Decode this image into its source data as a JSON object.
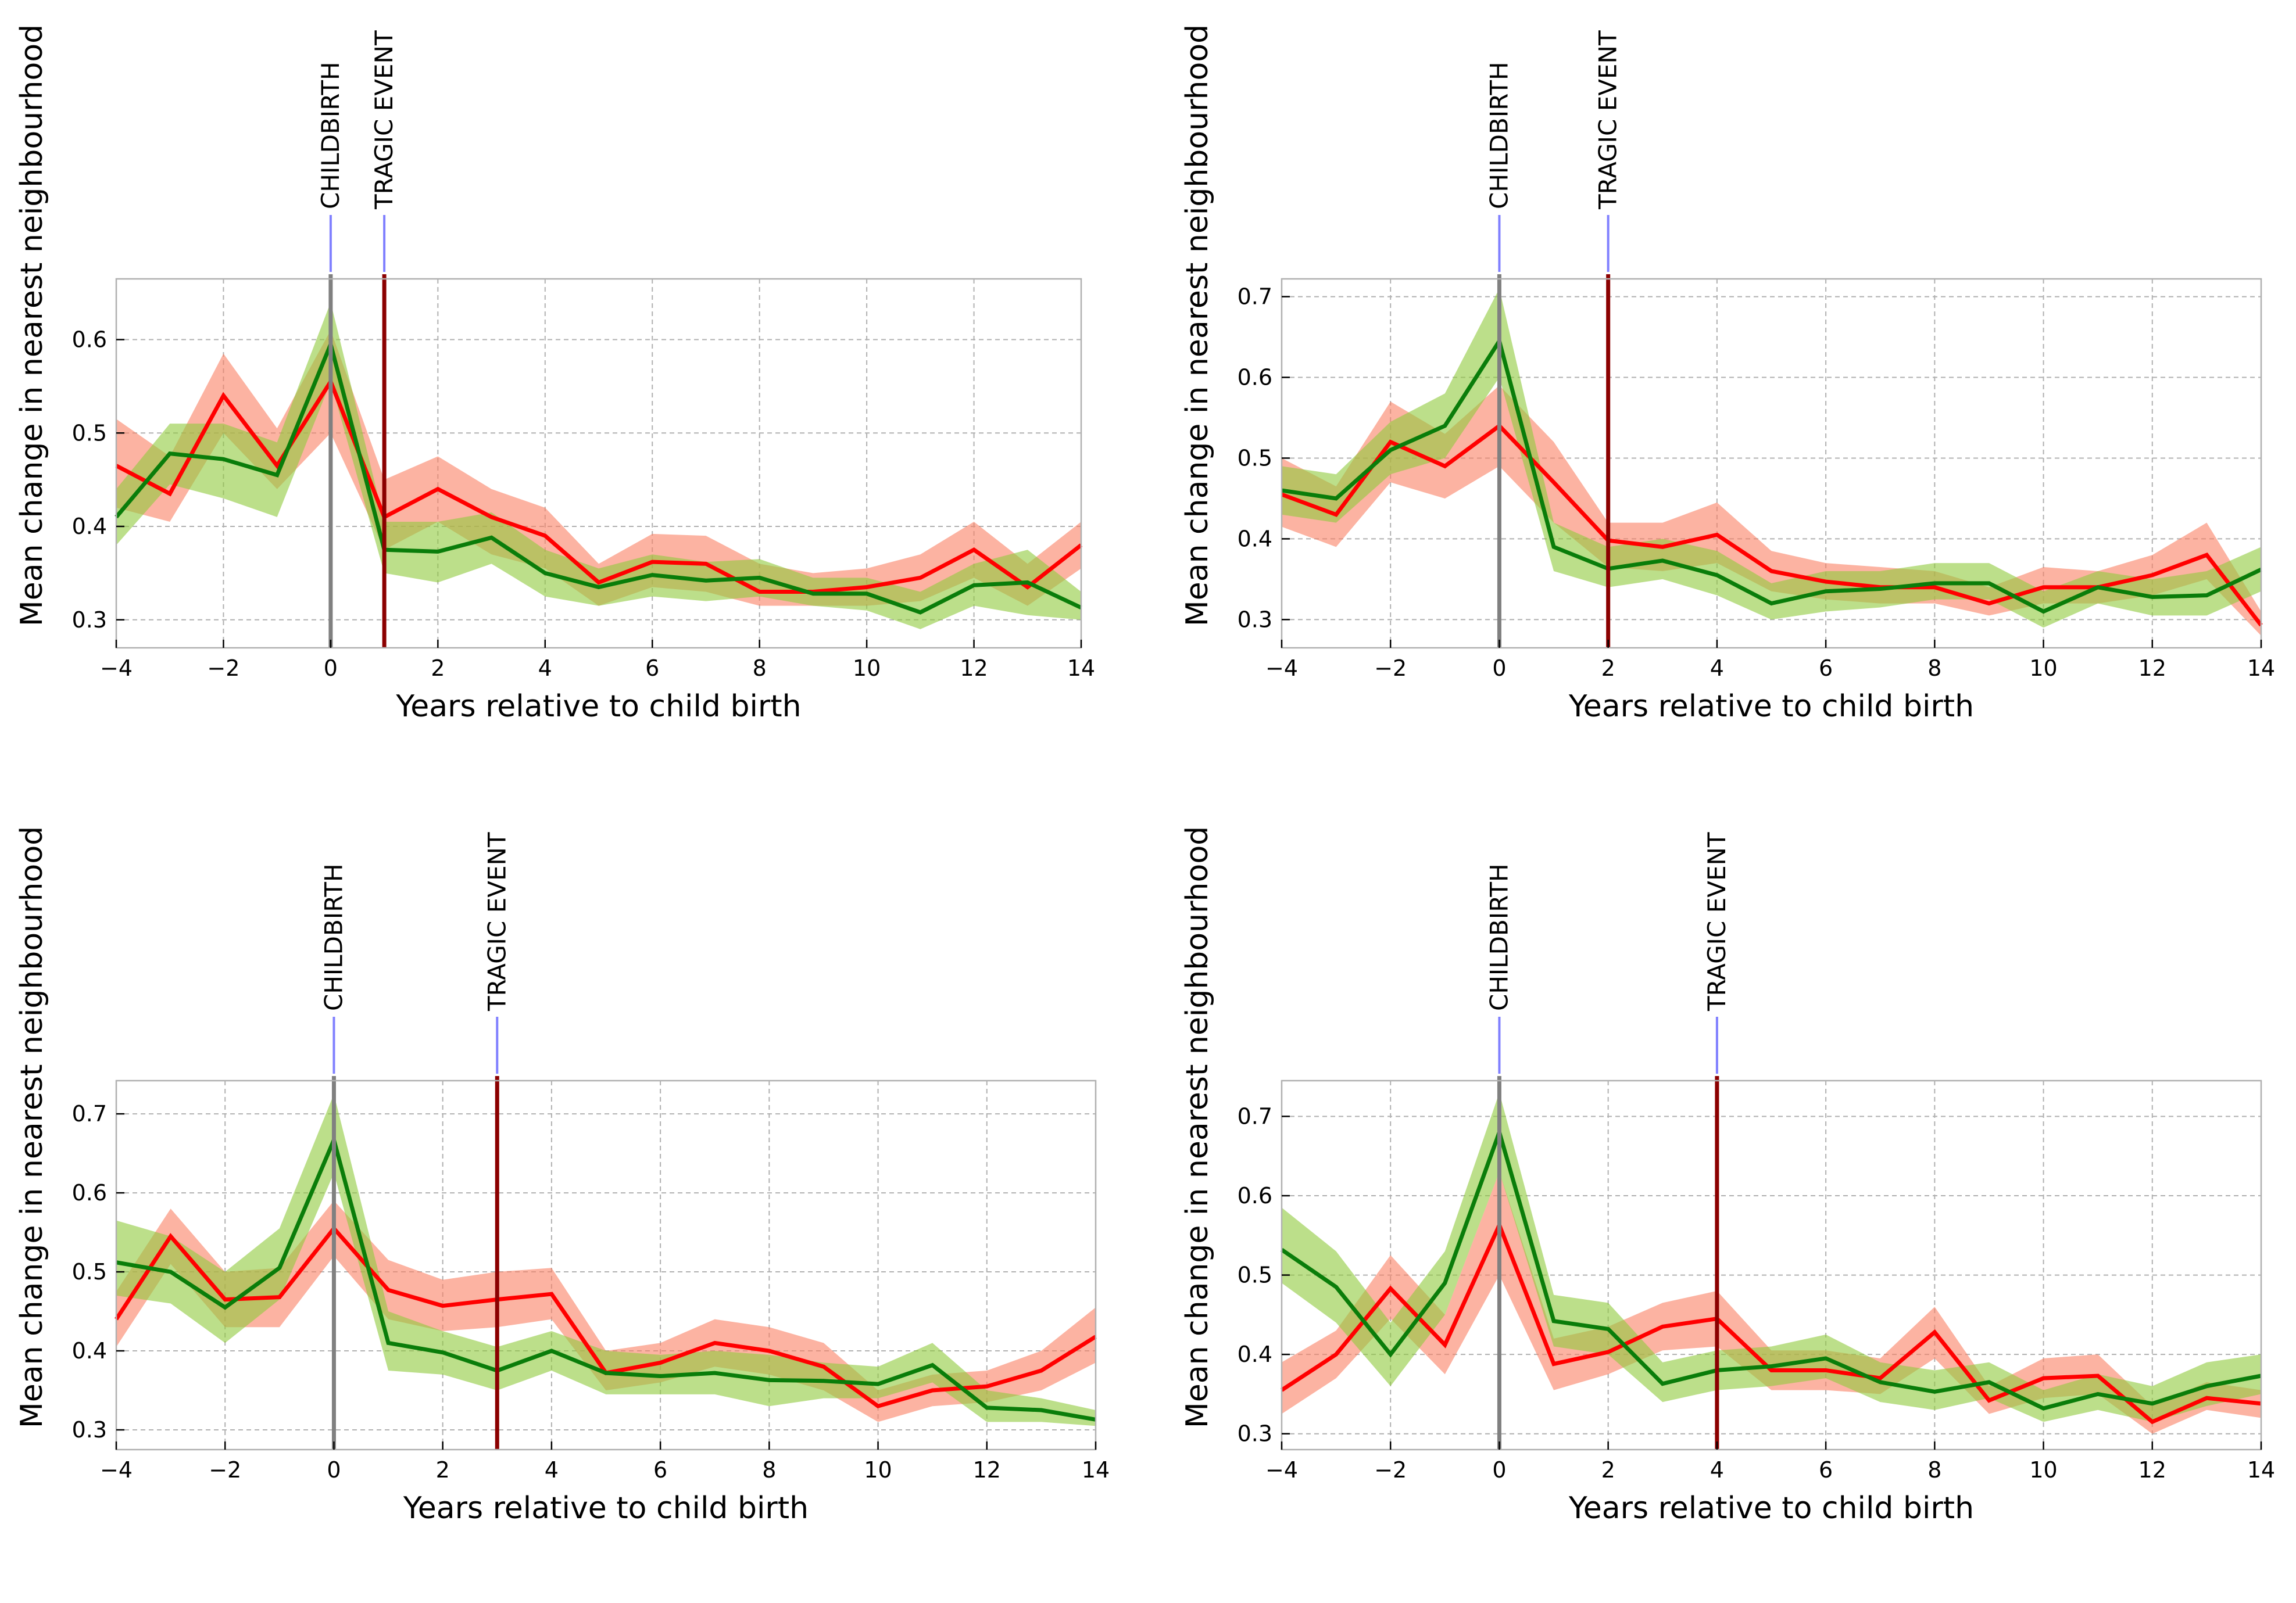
{
  "colors": {
    "series_red": "#ff0000",
    "band_red": "#fa8064",
    "series_green": "#0a7d0a",
    "band_green": "#8fca3c",
    "childbirth_line": "#808080",
    "tragic_line": "#8b0000",
    "marker": "#8080ff"
  },
  "chart_data": [
    {
      "type": "line",
      "xlabel": "Years relative to child birth",
      "ylabel": "Mean change in nearest neighbourhood",
      "xlim": [
        -4,
        14
      ],
      "ylim": [
        0.27,
        0.665
      ],
      "xticks": [
        -4,
        -2,
        0,
        2,
        4,
        6,
        8,
        10,
        12,
        14
      ],
      "xtick_labels": [
        "−4",
        "−2",
        "0",
        "2",
        "4",
        "6",
        "8",
        "10",
        "12",
        "14"
      ],
      "yticks": [
        0.3,
        0.4,
        0.5,
        0.6
      ],
      "ytick_labels": [
        "0.3",
        "0.4",
        "0.5",
        "0.6"
      ],
      "grid": true,
      "events": [
        {
          "label": "CHILDBIRTH",
          "x": 0,
          "color_key": "childbirth_line"
        },
        {
          "label": "TRAGIC EVENT",
          "x": 1,
          "color_key": "tragic_line"
        }
      ],
      "x": [
        -4,
        -3,
        -2,
        -1,
        0,
        1,
        2,
        3,
        4,
        5,
        6,
        7,
        8,
        9,
        10,
        11,
        12,
        13,
        14
      ],
      "series": [
        {
          "color_key": "series_red",
          "band_key": "band_red",
          "values": [
            0.465,
            0.435,
            0.54,
            0.465,
            0.555,
            0.41,
            0.44,
            0.41,
            0.39,
            0.34,
            0.362,
            0.36,
            0.33,
            0.33,
            0.335,
            0.345,
            0.375,
            0.335,
            0.38
          ],
          "lower": [
            0.42,
            0.405,
            0.5,
            0.44,
            0.5,
            0.375,
            0.405,
            0.37,
            0.355,
            0.315,
            0.335,
            0.33,
            0.315,
            0.315,
            0.315,
            0.32,
            0.345,
            0.315,
            0.355
          ],
          "upper": [
            0.515,
            0.475,
            0.585,
            0.505,
            0.61,
            0.45,
            0.475,
            0.44,
            0.42,
            0.36,
            0.392,
            0.39,
            0.36,
            0.35,
            0.355,
            0.37,
            0.405,
            0.36,
            0.405
          ]
        },
        {
          "color_key": "series_green",
          "band_key": "band_green",
          "values": [
            0.41,
            0.478,
            0.472,
            0.455,
            0.595,
            0.375,
            0.373,
            0.388,
            0.35,
            0.335,
            0.348,
            0.342,
            0.345,
            0.328,
            0.328,
            0.308,
            0.337,
            0.34,
            0.313
          ],
          "lower": [
            0.38,
            0.445,
            0.43,
            0.41,
            0.555,
            0.35,
            0.34,
            0.36,
            0.325,
            0.315,
            0.325,
            0.32,
            0.325,
            0.315,
            0.31,
            0.29,
            0.315,
            0.305,
            0.3
          ],
          "upper": [
            0.44,
            0.51,
            0.51,
            0.49,
            0.64,
            0.405,
            0.405,
            0.415,
            0.375,
            0.355,
            0.37,
            0.362,
            0.365,
            0.345,
            0.345,
            0.33,
            0.36,
            0.375,
            0.33
          ]
        }
      ]
    },
    {
      "type": "line",
      "xlabel": "Years relative to child birth",
      "ylabel": "Mean change in nearest neighbourhood",
      "xlim": [
        -4,
        14
      ],
      "ylim": [
        0.265,
        0.722
      ],
      "xticks": [
        -4,
        -2,
        0,
        2,
        4,
        6,
        8,
        10,
        12,
        14
      ],
      "xtick_labels": [
        "−4",
        "−2",
        "0",
        "2",
        "4",
        "6",
        "8",
        "10",
        "12",
        "14"
      ],
      "yticks": [
        0.3,
        0.4,
        0.5,
        0.6,
        0.7
      ],
      "ytick_labels": [
        "0.3",
        "0.4",
        "0.5",
        "0.6",
        "0.7"
      ],
      "grid": true,
      "events": [
        {
          "label": "CHILDBIRTH",
          "x": 0,
          "color_key": "childbirth_line"
        },
        {
          "label": "TRAGIC EVENT",
          "x": 2,
          "color_key": "tragic_line"
        }
      ],
      "x": [
        -4,
        -3,
        -2,
        -1,
        0,
        1,
        2,
        3,
        4,
        5,
        6,
        7,
        8,
        9,
        10,
        11,
        12,
        13,
        14
      ],
      "series": [
        {
          "color_key": "series_red",
          "band_key": "band_red",
          "values": [
            0.455,
            0.43,
            0.52,
            0.49,
            0.54,
            0.47,
            0.398,
            0.39,
            0.405,
            0.36,
            0.347,
            0.34,
            0.34,
            0.32,
            0.34,
            0.34,
            0.355,
            0.38,
            0.293
          ],
          "lower": [
            0.415,
            0.39,
            0.47,
            0.45,
            0.49,
            0.42,
            0.365,
            0.36,
            0.37,
            0.335,
            0.325,
            0.32,
            0.32,
            0.305,
            0.32,
            0.32,
            0.33,
            0.35,
            0.28
          ],
          "upper": [
            0.5,
            0.465,
            0.57,
            0.53,
            0.59,
            0.52,
            0.42,
            0.42,
            0.445,
            0.385,
            0.37,
            0.365,
            0.36,
            0.34,
            0.365,
            0.36,
            0.38,
            0.42,
            0.31
          ]
        },
        {
          "color_key": "series_green",
          "band_key": "band_green",
          "values": [
            0.46,
            0.45,
            0.51,
            0.54,
            0.645,
            0.39,
            0.363,
            0.373,
            0.355,
            0.32,
            0.335,
            0.338,
            0.345,
            0.345,
            0.31,
            0.34,
            0.328,
            0.33,
            0.362
          ],
          "lower": [
            0.43,
            0.42,
            0.48,
            0.5,
            0.6,
            0.36,
            0.34,
            0.35,
            0.33,
            0.3,
            0.31,
            0.315,
            0.325,
            0.325,
            0.29,
            0.32,
            0.305,
            0.305,
            0.335
          ],
          "upper": [
            0.49,
            0.48,
            0.545,
            0.58,
            0.71,
            0.42,
            0.39,
            0.4,
            0.385,
            0.345,
            0.36,
            0.36,
            0.37,
            0.37,
            0.335,
            0.36,
            0.35,
            0.36,
            0.39
          ]
        }
      ]
    },
    {
      "type": "line",
      "xlabel": "Years relative to child birth",
      "ylabel": "Mean change in nearest neighbourhood",
      "xlim": [
        -4,
        14
      ],
      "ylim": [
        0.275,
        0.742
      ],
      "xticks": [
        -4,
        -2,
        0,
        2,
        4,
        6,
        8,
        10,
        12,
        14
      ],
      "xtick_labels": [
        "−4",
        "−2",
        "0",
        "2",
        "4",
        "6",
        "8",
        "10",
        "12",
        "14"
      ],
      "yticks": [
        0.3,
        0.4,
        0.5,
        0.6,
        0.7
      ],
      "ytick_labels": [
        "0.3",
        "0.4",
        "0.5",
        "0.6",
        "0.7"
      ],
      "grid": true,
      "events": [
        {
          "label": "CHILDBIRTH",
          "x": 0,
          "color_key": "childbirth_line"
        },
        {
          "label": "TRAGIC EVENT",
          "x": 3,
          "color_key": "tragic_line"
        }
      ],
      "x": [
        -4,
        -3,
        -2,
        -1,
        0,
        1,
        2,
        3,
        4,
        5,
        6,
        7,
        8,
        9,
        10,
        11,
        12,
        13,
        14
      ],
      "series": [
        {
          "color_key": "series_red",
          "band_key": "band_red",
          "values": [
            0.44,
            0.545,
            0.465,
            0.468,
            0.555,
            0.477,
            0.457,
            0.465,
            0.472,
            0.372,
            0.385,
            0.41,
            0.4,
            0.38,
            0.33,
            0.35,
            0.355,
            0.375,
            0.418
          ],
          "lower": [
            0.405,
            0.51,
            0.43,
            0.43,
            0.52,
            0.44,
            0.425,
            0.43,
            0.44,
            0.35,
            0.36,
            0.38,
            0.37,
            0.35,
            0.31,
            0.33,
            0.335,
            0.35,
            0.385
          ],
          "upper": [
            0.475,
            0.58,
            0.5,
            0.505,
            0.59,
            0.515,
            0.49,
            0.5,
            0.505,
            0.4,
            0.41,
            0.44,
            0.43,
            0.41,
            0.35,
            0.37,
            0.375,
            0.4,
            0.455
          ]
        },
        {
          "color_key": "series_green",
          "band_key": "band_green",
          "values": [
            0.512,
            0.5,
            0.455,
            0.505,
            0.667,
            0.41,
            0.398,
            0.375,
            0.4,
            0.372,
            0.368,
            0.372,
            0.363,
            0.362,
            0.358,
            0.382,
            0.328,
            0.325,
            0.313
          ],
          "lower": [
            0.47,
            0.46,
            0.41,
            0.465,
            0.625,
            0.375,
            0.37,
            0.35,
            0.375,
            0.345,
            0.345,
            0.345,
            0.33,
            0.34,
            0.34,
            0.36,
            0.31,
            0.31,
            0.305
          ],
          "upper": [
            0.565,
            0.545,
            0.5,
            0.555,
            0.725,
            0.45,
            0.425,
            0.405,
            0.425,
            0.4,
            0.395,
            0.4,
            0.395,
            0.385,
            0.38,
            0.41,
            0.35,
            0.34,
            0.325
          ]
        }
      ]
    },
    {
      "type": "line",
      "xlabel": "Years relative to child birth",
      "ylabel": "Mean change in nearest neighbourhood",
      "xlim": [
        -4,
        14
      ],
      "ylim": [
        0.28,
        0.745
      ],
      "xticks": [
        -4,
        -2,
        0,
        2,
        4,
        6,
        8,
        10,
        12,
        14
      ],
      "xtick_labels": [
        "−4",
        "−2",
        "0",
        "2",
        "4",
        "6",
        "8",
        "10",
        "12",
        "14"
      ],
      "yticks": [
        0.3,
        0.4,
        0.5,
        0.6,
        0.7
      ],
      "ytick_labels": [
        "0.3",
        "0.4",
        "0.5",
        "0.6",
        "0.7"
      ],
      "grid": true,
      "events": [
        {
          "label": "CHILDBIRTH",
          "x": 0,
          "color_key": "childbirth_line"
        },
        {
          "label": "TRAGIC EVENT",
          "x": 4,
          "color_key": "tragic_line"
        }
      ],
      "x": [
        -4,
        -3,
        -2,
        -1,
        0,
        1,
        2,
        3,
        4,
        5,
        6,
        7,
        8,
        9,
        10,
        11,
        12,
        13,
        14
      ],
      "series": [
        {
          "color_key": "series_red",
          "band_key": "band_red",
          "values": [
            0.355,
            0.4,
            0.483,
            0.412,
            0.563,
            0.388,
            0.403,
            0.435,
            0.445,
            0.38,
            0.38,
            0.37,
            0.428,
            0.342,
            0.37,
            0.373,
            0.315,
            0.345,
            0.338
          ],
          "lower": [
            0.325,
            0.37,
            0.445,
            0.375,
            0.5,
            0.355,
            0.375,
            0.405,
            0.41,
            0.355,
            0.355,
            0.35,
            0.395,
            0.325,
            0.345,
            0.35,
            0.3,
            0.33,
            0.32
          ],
          "upper": [
            0.39,
            0.43,
            0.525,
            0.45,
            0.63,
            0.42,
            0.435,
            0.465,
            0.48,
            0.405,
            0.405,
            0.395,
            0.46,
            0.36,
            0.395,
            0.4,
            0.335,
            0.365,
            0.355
          ]
        },
        {
          "color_key": "series_green",
          "band_key": "band_green",
          "values": [
            0.532,
            0.485,
            0.4,
            0.49,
            0.68,
            0.442,
            0.432,
            0.363,
            0.38,
            0.385,
            0.395,
            0.365,
            0.353,
            0.365,
            0.332,
            0.35,
            0.338,
            0.36,
            0.373
          ],
          "lower": [
            0.49,
            0.44,
            0.36,
            0.45,
            0.63,
            0.41,
            0.4,
            0.34,
            0.355,
            0.36,
            0.37,
            0.34,
            0.33,
            0.345,
            0.315,
            0.33,
            0.315,
            0.335,
            0.35
          ],
          "upper": [
            0.585,
            0.53,
            0.44,
            0.53,
            0.73,
            0.475,
            0.465,
            0.39,
            0.405,
            0.41,
            0.425,
            0.39,
            0.38,
            0.39,
            0.355,
            0.375,
            0.36,
            0.39,
            0.4
          ]
        }
      ]
    }
  ]
}
